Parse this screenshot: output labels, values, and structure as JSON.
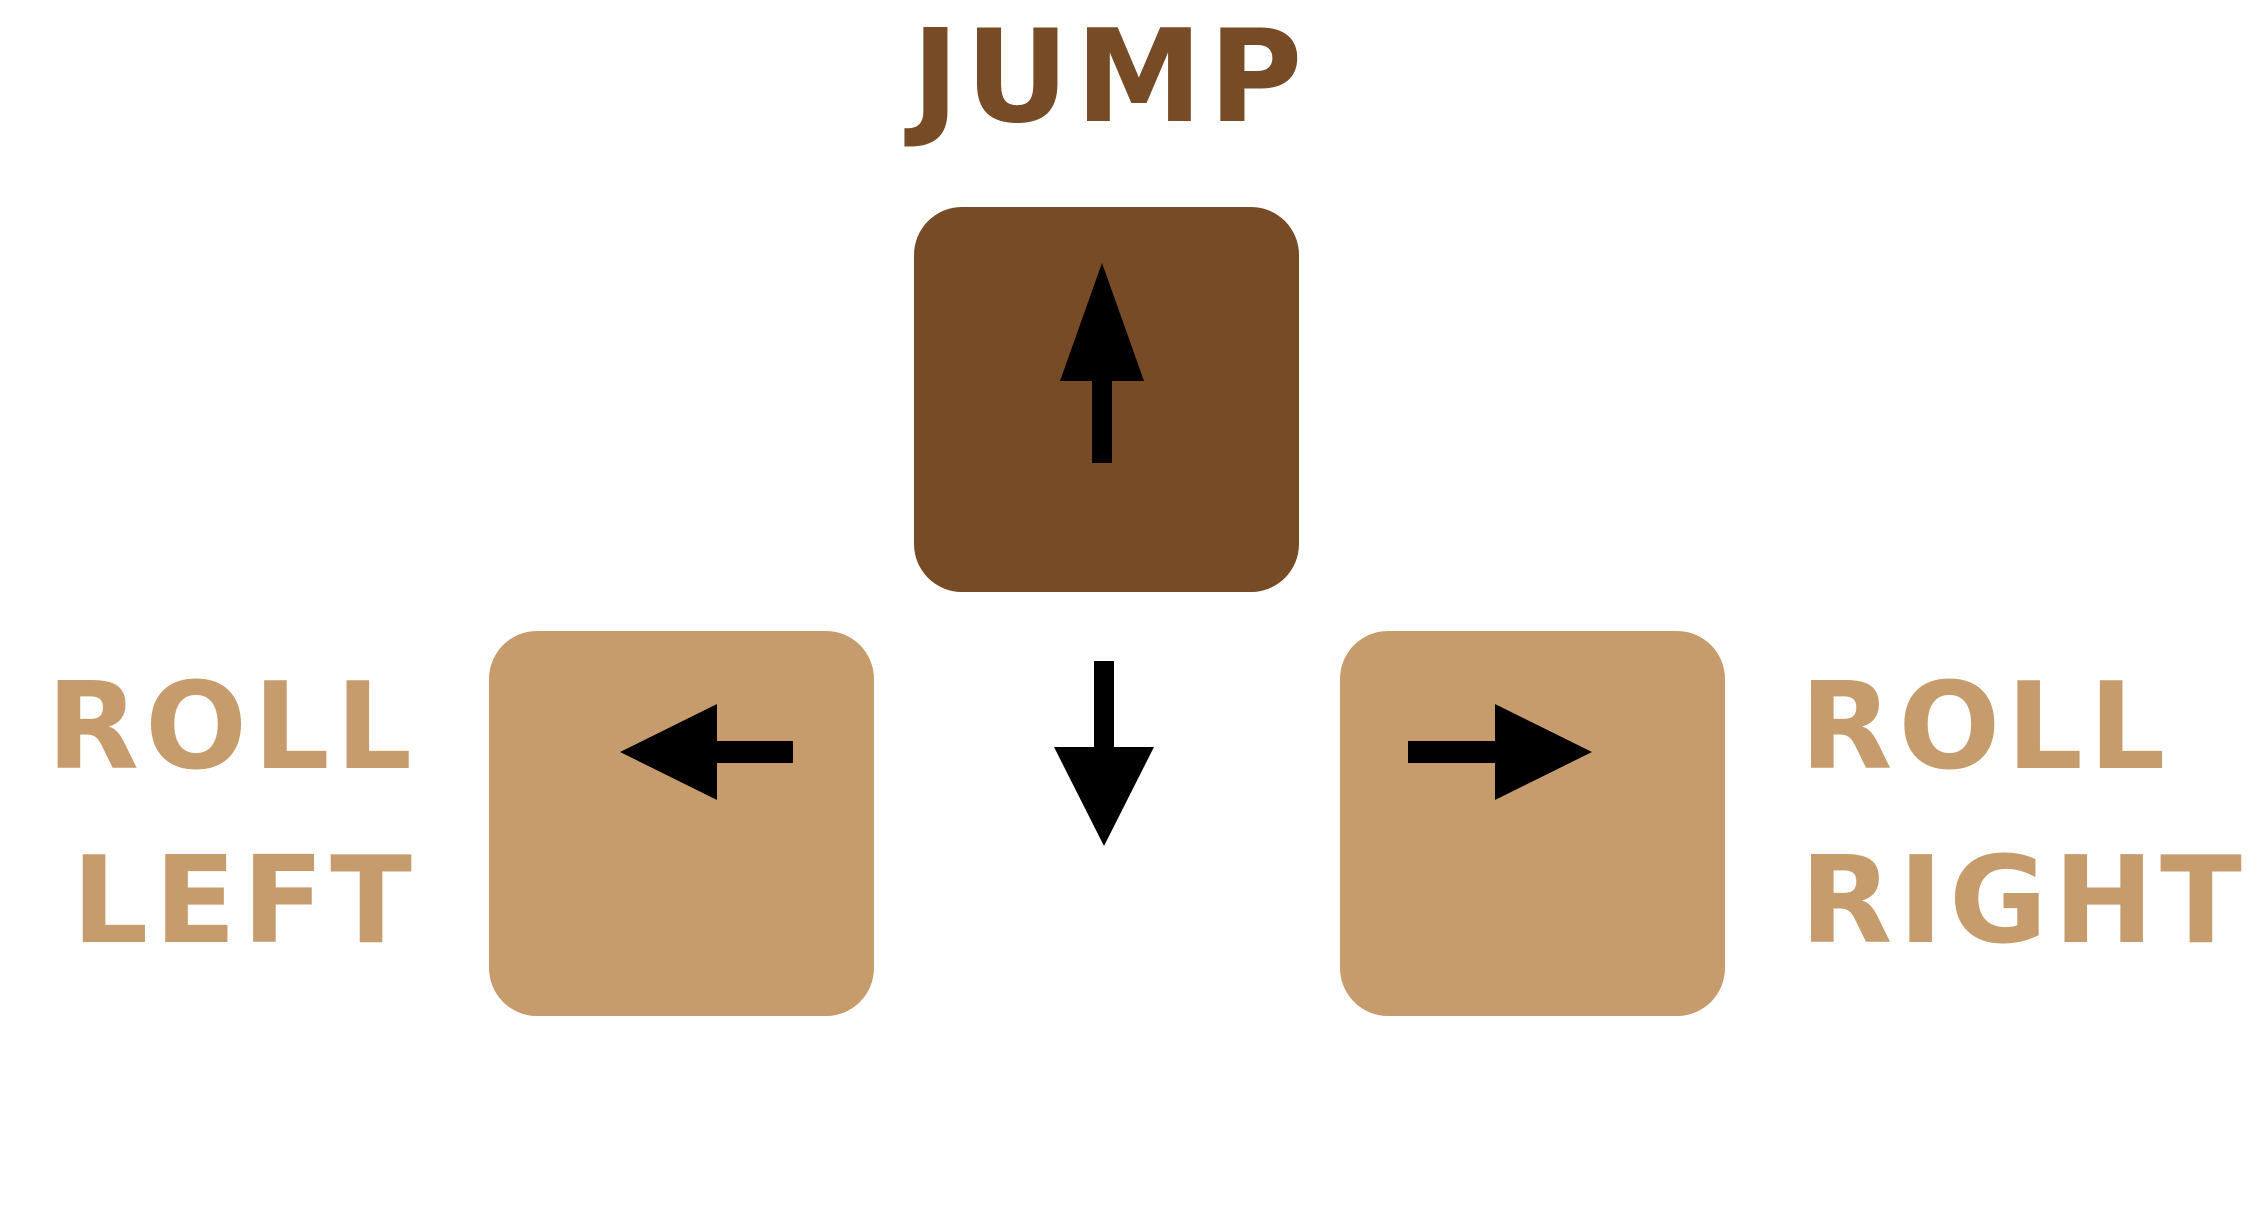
{
  "controls": {
    "jump": {
      "label": "JUMP",
      "key_icon": "arrow-up-icon",
      "color": "#764b25"
    },
    "roll_left": {
      "label_line1": "ROLL",
      "label_line2": "LEFT",
      "key_icon": "arrow-left-icon",
      "color": "#c69c6d"
    },
    "roll_right": {
      "label_line1": "ROLL",
      "label_line2": "RIGHT",
      "key_icon": "arrow-right-icon",
      "color": "#c69c6d"
    },
    "down": {
      "icon": "arrow-down-icon"
    }
  },
  "colors": {
    "active_key": "#764b25",
    "inactive_key": "#c69c6d",
    "arrow": "#000000",
    "background": "#ffffff"
  }
}
